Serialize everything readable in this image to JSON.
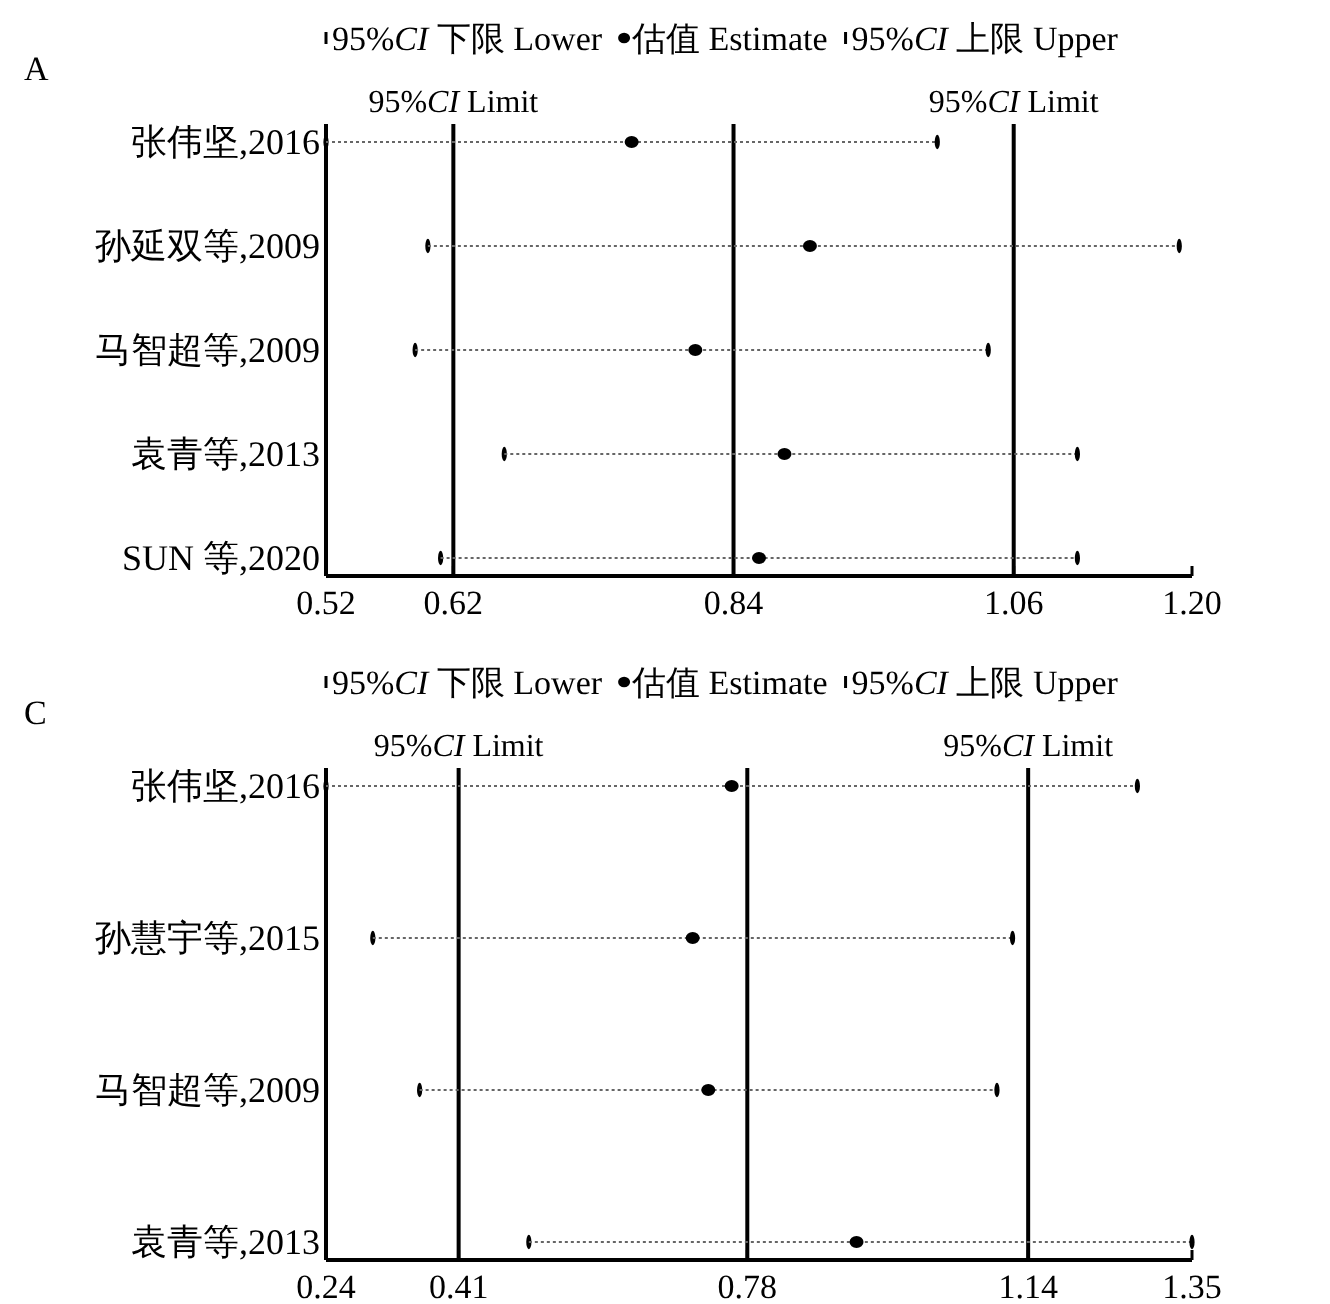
{
  "chart_data": [
    {
      "type": "scatter",
      "title": "A",
      "orientation": "horizontal",
      "legend": "top",
      "categories": [
        "张伟坚,2016",
        "孙延双等,2009",
        "马智超等,2009",
        "袁青等,2013",
        "SUN 等,2020"
      ],
      "xlim": [
        0.52,
        1.2
      ],
      "xticks": [
        0.52,
        0.62,
        0.84,
        1.06,
        {
          "value": 1.2,
          "label": "1.20"
        }
      ],
      "series": [
        {
          "name": "95%*CI* 下限 Lower",
          "color": "#000000",
          "values": [
            0.52,
            0.6,
            0.59,
            0.66,
            0.61
          ]
        },
        {
          "name": "估值 Estimate",
          "color": "#000000",
          "marker": "circle",
          "line_style": "dotted",
          "values": [
            0.76,
            0.9,
            0.81,
            0.88,
            0.86
          ]
        },
        {
          "name": "95%*CI* 上限 Upper",
          "color": "#000000",
          "values": [
            1.0,
            1.19,
            1.04,
            1.11,
            1.11
          ]
        }
      ],
      "ref_lines": [
        {
          "axis": "x",
          "value": 0.62,
          "label": "95%*CI* Limit"
        },
        {
          "axis": "x",
          "value": 0.84
        },
        {
          "axis": "x",
          "value": 1.06,
          "label": "95%*CI* Limit"
        }
      ]
    },
    {
      "type": "scatter",
      "title": "C",
      "orientation": "horizontal",
      "legend": "top",
      "categories": [
        "张伟坚,2016",
        "孙慧宇等,2015",
        "马智超等,2009",
        "袁青等,2013"
      ],
      "xlim": [
        0.24,
        1.35
      ],
      "xticks": [
        0.24,
        0.41,
        0.78,
        1.14,
        1.35
      ],
      "series": [
        {
          "name": "95%*CI* 下限 Lower",
          "color": "#000000",
          "values": [
            0.24,
            0.3,
            0.36,
            0.5
          ]
        },
        {
          "name": "估值 Estimate",
          "color": "#000000",
          "marker": "circle",
          "line_style": "dotted",
          "values": [
            0.76,
            0.71,
            0.73,
            0.92
          ]
        },
        {
          "name": "95%*CI* 上限 Upper",
          "color": "#000000",
          "values": [
            1.28,
            1.12,
            1.1,
            1.35
          ]
        }
      ],
      "ref_lines": [
        {
          "axis": "x",
          "value": 0.41,
          "label": "95%*CI* Limit"
        },
        {
          "axis": "x",
          "value": 0.78
        },
        {
          "axis": "x",
          "value": 1.14,
          "label": "95%*CI* Limit"
        }
      ]
    }
  ]
}
